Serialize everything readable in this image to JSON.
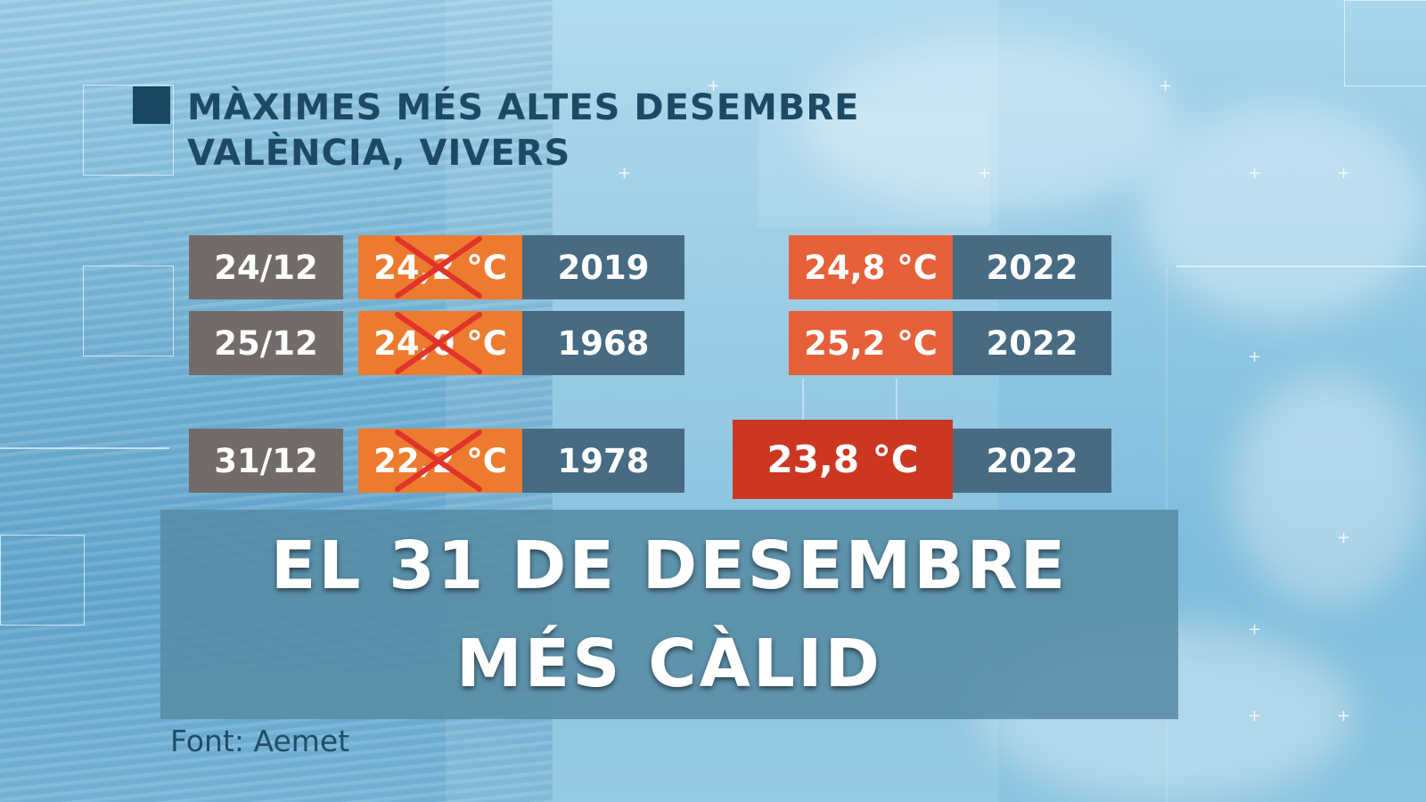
{
  "title": {
    "line1": "MÀXIMES MÉS ALTES DESEMBRE",
    "line2": "VALÈNCIA, VIVERS"
  },
  "records": [
    {
      "date": "24/12",
      "old_temp": "24,2 °C",
      "old_year": "2019",
      "new_temp": "24,8 °C",
      "new_year": "2022"
    },
    {
      "date": "25/12",
      "old_temp": "24,0 °C",
      "old_year": "1968",
      "new_temp": "25,2 °C",
      "new_year": "2022"
    },
    {
      "date": "31/12",
      "old_temp": "22,2 °C",
      "old_year": "1978",
      "new_temp": "23,8 °C",
      "new_year": "2022"
    }
  ],
  "banner": {
    "line1": "EL 31 DE DESEMBRE",
    "line2": "MÉS CÀLID"
  },
  "source": "Font: Aemet",
  "colors": {
    "date_bg": "#736b68",
    "old_temp_bg": "#ec7b2f",
    "year_bg": "#466b82",
    "new_temp_bg": "#e6603a",
    "highlight_temp_bg": "#cc3722",
    "strike": "#e0342a",
    "title": "#1c4a64"
  }
}
